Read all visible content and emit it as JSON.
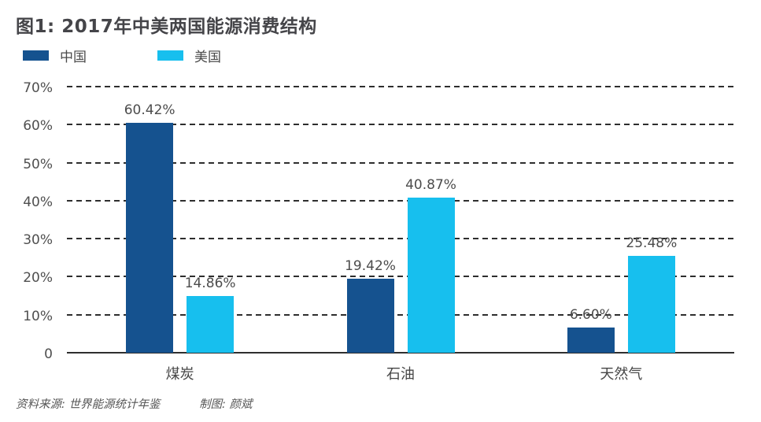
{
  "title": "图1: 2017年中美两国能源消费结构",
  "legend": [
    {
      "key": "china",
      "label": "中国",
      "color": "#15528F"
    },
    {
      "key": "usa",
      "label": "美国",
      "color": "#17BFEE"
    }
  ],
  "footer": {
    "source": "资料来源: 世界能源统计年鉴",
    "credit": "制图: 颜斌"
  },
  "chart_data": {
    "type": "bar",
    "title": "图1: 2017年中美两国能源消费结构",
    "categories": [
      "煤炭",
      "石油",
      "天然气"
    ],
    "category_keys": [
      "coal",
      "oil",
      "gas"
    ],
    "series": [
      {
        "key": "china",
        "name": "中国",
        "color": "#15528F",
        "values": [
          60.42,
          19.42,
          6.6
        ],
        "value_labels": [
          "60.42%",
          "19.42%",
          "6.60%"
        ]
      },
      {
        "key": "usa",
        "name": "美国",
        "color": "#17BFEE",
        "values": [
          14.86,
          40.87,
          25.48
        ],
        "value_labels": [
          "14.86%",
          "40.87%",
          "25.48%"
        ]
      }
    ],
    "ylim": [
      0,
      70
    ],
    "y_ticks": [
      {
        "value": 70,
        "label": "70%"
      },
      {
        "value": 60,
        "label": "60%"
      },
      {
        "value": 50,
        "label": "50%"
      },
      {
        "value": 40,
        "label": "40%"
      },
      {
        "value": 30,
        "label": "30%"
      },
      {
        "value": 20,
        "label": "20%"
      },
      {
        "value": 10,
        "label": "10%"
      },
      {
        "value": 0,
        "label": "0"
      }
    ],
    "grid": "horizontal-dashed",
    "legend_position": "top-left"
  }
}
